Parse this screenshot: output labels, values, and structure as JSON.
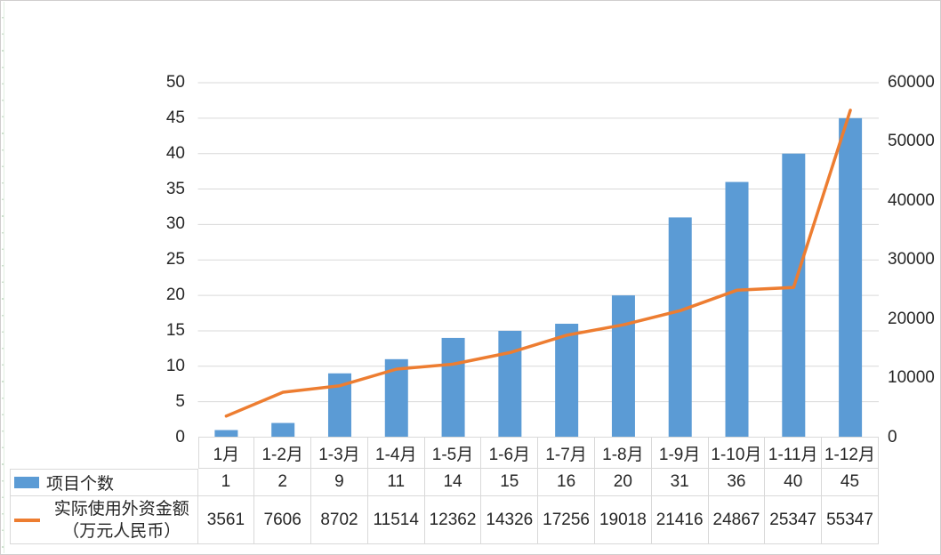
{
  "chart_data": {
    "type": "bar",
    "subtype": "combo-bar-line-with-data-table",
    "title": "",
    "categories": [
      "1月",
      "1-2月",
      "1-3月",
      "1-4月",
      "1-5月",
      "1-6月",
      "1-7月",
      "1-8月",
      "1-9月",
      "1-10月",
      "1-11月",
      "1-12月"
    ],
    "series": [
      {
        "name": "项目个数",
        "type": "bar",
        "axis": "left",
        "color": "#5B9BD5",
        "values": [
          1,
          2,
          9,
          11,
          14,
          15,
          16,
          20,
          31,
          36,
          40,
          45
        ]
      },
      {
        "name": "实际使用外资金额（万元人民币）",
        "name_lines": [
          "实际使用外资金额",
          "（万元人民币）"
        ],
        "type": "line",
        "axis": "right",
        "color": "#ED7D31",
        "values": [
          3561,
          7606,
          8702,
          11514,
          12362,
          14326,
          17256,
          19018,
          21416,
          24867,
          25347,
          55347
        ]
      }
    ],
    "left_axis": {
      "min": 0,
      "max": 50,
      "step": 5,
      "tick_labels": [
        "0",
        "5",
        "10",
        "15",
        "20",
        "25",
        "30",
        "35",
        "40",
        "45",
        "50"
      ]
    },
    "right_axis": {
      "min": 0,
      "max": 60000,
      "step": 10000,
      "tick_labels": [
        "0",
        "10000",
        "20000",
        "30000",
        "40000",
        "50000",
        "60000"
      ]
    },
    "grid": true,
    "legend_position": "left-of-data-table",
    "data_table_shown": true
  },
  "colors": {
    "bar": "#5B9BD5",
    "line": "#ED7D31",
    "gridline": "#D9D9D9",
    "table_border": "#D9D9D9",
    "text": "#262626",
    "frame_border": "#D0CECE"
  }
}
